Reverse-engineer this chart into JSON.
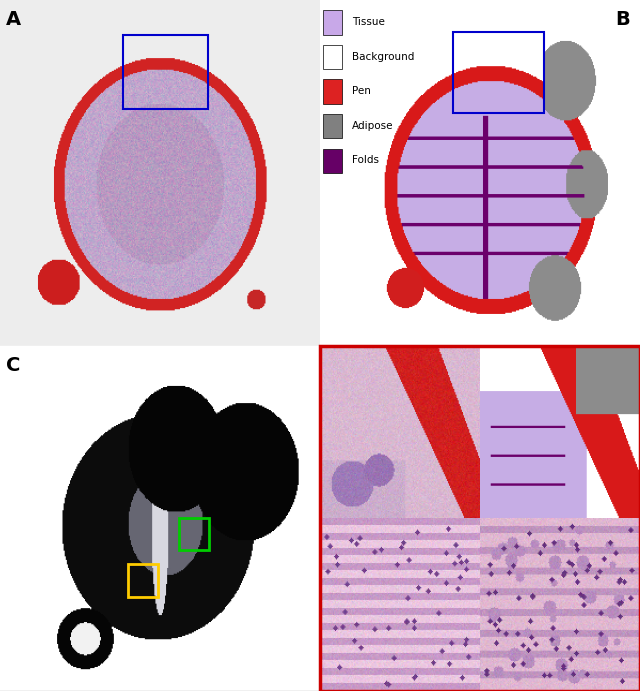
{
  "figure_size": [
    6.4,
    6.91
  ],
  "dpi": 100,
  "background_color": "#f0f0f0",
  "panel_labels": [
    "A",
    "B",
    "C"
  ],
  "legend_items": [
    {
      "label": "Tissue",
      "color": "#c8a8e8"
    },
    {
      "label": "Background",
      "color": "#ffffff"
    },
    {
      "label": "Pen",
      "color": "#dd2222"
    },
    {
      "label": "Adipose",
      "color": "#808080"
    },
    {
      "label": "Folds",
      "color": "#660066"
    }
  ],
  "box_border_color": "#d0d0d0",
  "blue_box_color": "#0000cc",
  "green_box_color": "#00cc00",
  "yellow_box_color": "#ffcc00",
  "red_border_color": "#cc0000"
}
